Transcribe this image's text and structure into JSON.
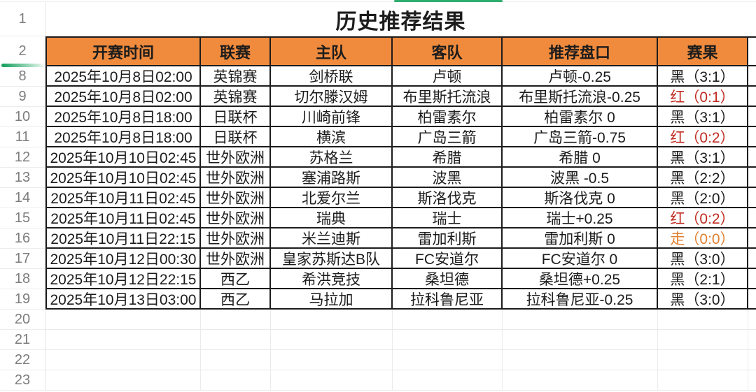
{
  "sheet": {
    "title": "历史推荐结果",
    "title_row": {
      "number": "1"
    },
    "header_row": {
      "number": "2"
    },
    "columns": [
      "开赛时间",
      "联赛",
      "主队",
      "客队",
      "推荐盘口",
      "赛果"
    ],
    "rows": [
      {
        "number": "8",
        "time": "2025年10月8日02:00",
        "league": "英锦赛",
        "home": "剑桥联",
        "away": "卢顿",
        "handicap": "卢顿-0.25",
        "result": "黑（3:1）",
        "result_type": "black"
      },
      {
        "number": "9",
        "time": "2025年10月8日02:00",
        "league": "英锦赛",
        "home": "切尔滕汉姆",
        "away": "布里斯托流浪",
        "handicap": "布里斯托流浪-0.25",
        "result": "红（0:1）",
        "result_type": "red"
      },
      {
        "number": "10",
        "time": "2025年10月8日18:00",
        "league": "日联杯",
        "home": "川崎前锋",
        "away": "柏雷素尔",
        "handicap": "柏雷素尔 0",
        "result": "黑（3:1）",
        "result_type": "black"
      },
      {
        "number": "11",
        "time": "2025年10月8日18:00",
        "league": "日联杯",
        "home": "横滨",
        "away": "广岛三箭",
        "handicap": "广岛三箭-0.75",
        "result": "红（0:2）",
        "result_type": "red"
      },
      {
        "number": "12",
        "time": "2025年10月10日02:45",
        "league": "世外欧洲",
        "home": "苏格兰",
        "away": "希腊",
        "handicap": "希腊 0",
        "result": "黑（3:1）",
        "result_type": "black"
      },
      {
        "number": "13",
        "time": "2025年10月10日02:45",
        "league": "世外欧洲",
        "home": "塞浦路斯",
        "away": "波黑",
        "handicap": "波黑 -0.5",
        "result": "黑（2:2）",
        "result_type": "black"
      },
      {
        "number": "14",
        "time": "2025年10月11日02:45",
        "league": "世外欧洲",
        "home": "北爱尔兰",
        "away": "斯洛伐克",
        "handicap": "斯洛伐克 0",
        "result": "黑（2:0）",
        "result_type": "black"
      },
      {
        "number": "15",
        "time": "2025年10月11日02:45",
        "league": "世外欧洲",
        "home": "瑞典",
        "away": "瑞士",
        "handicap": "瑞士+0.25",
        "result": "红（0:2）",
        "result_type": "red"
      },
      {
        "number": "16",
        "time": "2025年10月11日22:15",
        "league": "世外欧洲",
        "home": "米兰迪斯",
        "away": "雷加利斯",
        "handicap": "雷加利斯 0",
        "result": "走（0:0）",
        "result_type": "draw"
      },
      {
        "number": "17",
        "time": "2025年10月12日00:30",
        "league": "世外欧洲",
        "home": "皇家苏斯达B队",
        "away": "FC安道尔",
        "handicap": "FC安道尔 0",
        "result": "黑（3:0）",
        "result_type": "black"
      },
      {
        "number": "18",
        "time": "2025年10月12日22:15",
        "league": "西乙",
        "home": "希洪竞技",
        "away": "桑坦德",
        "handicap": "桑坦德+0.25",
        "result": "黑（2:1）",
        "result_type": "black"
      },
      {
        "number": "19",
        "time": "2025年10月13日03:00",
        "league": "西乙",
        "home": "马拉加",
        "away": "拉科鲁尼亚",
        "handicap": "拉科鲁尼亚-0.25",
        "result": "黑（3:0）",
        "result_type": "black"
      }
    ],
    "empty_rows": [
      "20",
      "21",
      "22",
      "23"
    ],
    "hidden_row_range": "3-7",
    "colors": {
      "header_bg": "#F08B3D",
      "border_dark": "#1C1C1C",
      "grid_light": "#E9E9E9",
      "row_number_text": "#7D7D7D",
      "result_black": "#1C1C1C",
      "result_red": "#C02A20",
      "result_draw_orange": "#E2802F",
      "top_bar_green": "#2EAD6F",
      "hidden_rows_indicator_green": "#0F9D58"
    }
  }
}
